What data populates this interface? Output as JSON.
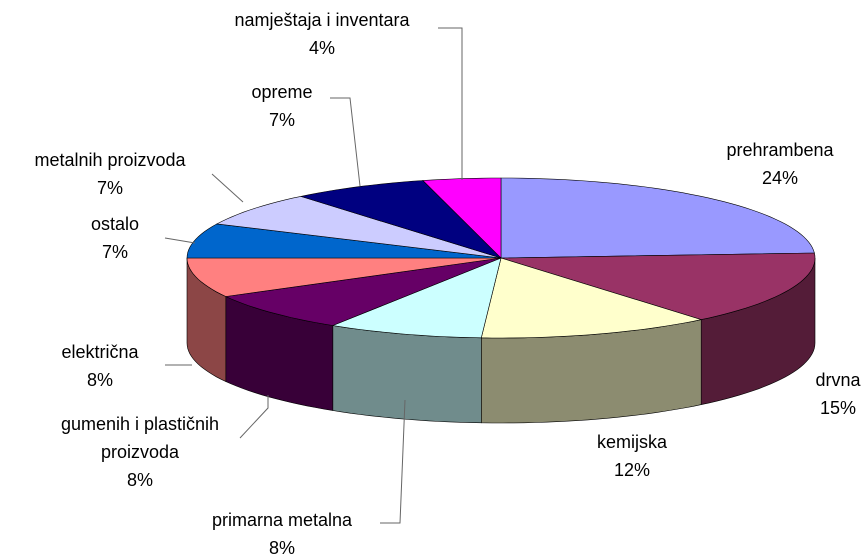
{
  "chart_data": {
    "type": "pie3d",
    "categories": [
      "prehrambena",
      "drvna",
      "kemijska",
      "primarna metalna",
      "gumenih i plastičnih proizvoda",
      "električna",
      "ostalo",
      "metalnih proizvoda",
      "opreme",
      "namještaja i inventara"
    ],
    "values": [
      24,
      15,
      12,
      8,
      8,
      8,
      7,
      7,
      7,
      4
    ],
    "value_labels": [
      "24%",
      "15%",
      "12%",
      "8%",
      "8%",
      "8%",
      "7%",
      "7%",
      "7%",
      "4%"
    ],
    "colors": [
      "#9999ff",
      "#993366",
      "#ffffcc",
      "#ccffff",
      "#660066",
      "#ff8080",
      "#0066cc",
      "#ccccff",
      "#000080",
      "#ff00ff"
    ]
  }
}
